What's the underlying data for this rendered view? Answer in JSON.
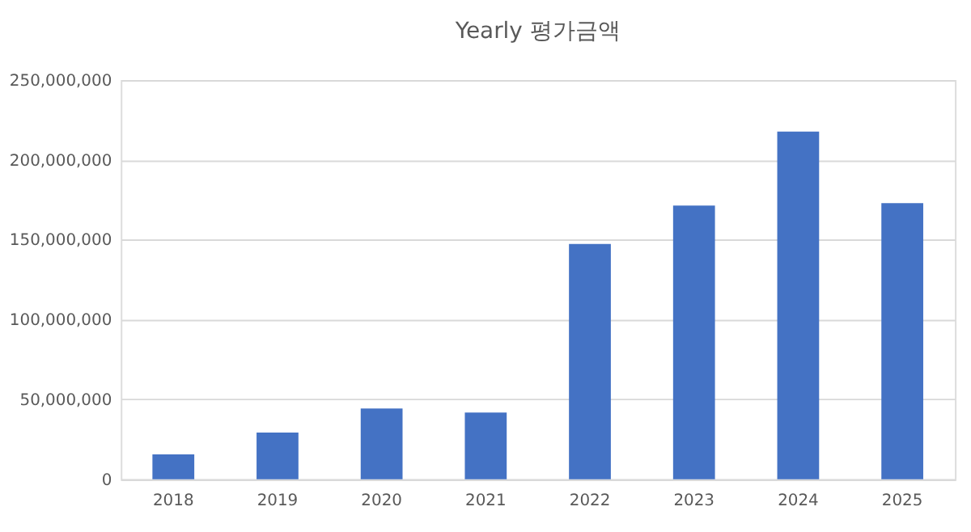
{
  "chart_data": {
    "type": "bar",
    "title": "Yearly 평가금액",
    "categories": [
      "2018",
      "2019",
      "2020",
      "2021",
      "2022",
      "2023",
      "2024",
      "2025"
    ],
    "values": [
      15500000,
      29200000,
      44300000,
      41700000,
      147300000,
      171400000,
      217800000,
      172900000
    ],
    "color": "#4472c4",
    "ylim": [
      0,
      250000000
    ],
    "yticks": [
      {
        "value": 0,
        "label": "0"
      },
      {
        "value": 50000000,
        "label": "50,000,000"
      },
      {
        "value": 100000000,
        "label": "100,000,000"
      },
      {
        "value": 150000000,
        "label": "150,000,000"
      },
      {
        "value": 200000000,
        "label": "200,000,000"
      },
      {
        "value": 250000000,
        "label": "250,000,000"
      }
    ],
    "grid": "y"
  }
}
